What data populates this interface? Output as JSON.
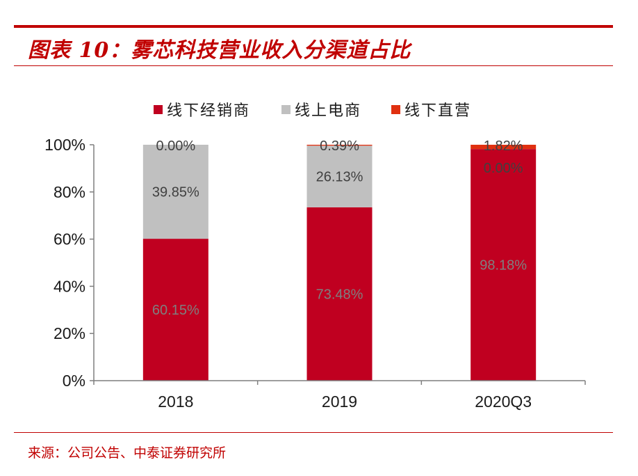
{
  "title": "图表 10：雾芯科技营业收入分渠道占比",
  "source": "来源：公司公告、中泰证券研究所",
  "chart_data": {
    "type": "bar",
    "stacked": true,
    "categories": [
      "2018",
      "2019",
      "2020Q3"
    ],
    "series": [
      {
        "name": "线下经销商",
        "values": [
          60.15,
          73.48,
          98.18
        ],
        "labels": [
          "60.15%",
          "73.48%",
          "98.18%"
        ],
        "color": "#c00020",
        "label_color": "#7f7f7f"
      },
      {
        "name": "线上电商",
        "values": [
          39.85,
          26.13,
          0.0
        ],
        "labels": [
          "39.85%",
          "26.13%",
          "0.00%"
        ],
        "color": "#c0c0c0",
        "label_color": "#404040"
      },
      {
        "name": "线下直营",
        "values": [
          0.0,
          0.39,
          1.82
        ],
        "labels": [
          "0.00%",
          "0.39%",
          "1.82%"
        ],
        "color": "#e03010",
        "label_color": "#404040"
      }
    ],
    "ylim": [
      0,
      100
    ],
    "yticks": [
      0,
      20,
      40,
      60,
      80,
      100
    ],
    "ytick_labels": [
      "0%",
      "20%",
      "40%",
      "60%",
      "80%",
      "100%"
    ],
    "legend_position": "top",
    "grid": false
  }
}
